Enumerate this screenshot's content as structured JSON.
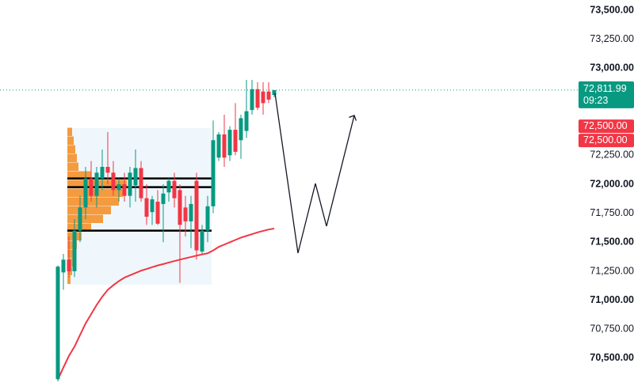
{
  "chart_data": {
    "type": "candlestick",
    "ylim": [
      70295,
      73589
    ],
    "yticks": [
      {
        "value": 70500,
        "label": "70,500.00"
      },
      {
        "value": 70750,
        "label": "70,750.00"
      },
      {
        "value": 71000,
        "label": "71,000.00"
      },
      {
        "value": 71250,
        "label": "71,250.00"
      },
      {
        "value": 71500,
        "label": "71,500.00"
      },
      {
        "value": 71750,
        "label": "71,750.00"
      },
      {
        "value": 72000,
        "label": "72,000.00"
      },
      {
        "value": 72250,
        "label": "72,250.00"
      },
      {
        "value": 73000,
        "label": "73,000.00"
      },
      {
        "value": 73250,
        "label": "73,250.00"
      },
      {
        "value": 73500,
        "label": "73,500.00"
      }
    ],
    "up_color": "#089981",
    "down_color": "#f23645",
    "candles": {
      "open": [
        70320,
        71240,
        71350,
        71250,
        71600,
        71800,
        72050,
        71900,
        72050,
        72150,
        72100,
        71950,
        72000,
        71900,
        71990,
        72140,
        71880,
        71760,
        71850,
        71830,
        71930,
        72030,
        71950,
        71800,
        71680,
        72030,
        71420,
        71600,
        71810,
        72230,
        72430,
        72250,
        72470,
        72380,
        72460,
        72640,
        72820,
        72800,
        72800,
        72770
      ],
      "high": [
        71300,
        71400,
        71550,
        71700,
        71900,
        72150,
        72200,
        72150,
        72300,
        72450,
        72200,
        72050,
        72100,
        72150,
        72300,
        72200,
        72000,
        71900,
        71950,
        72000,
        72050,
        72100,
        72000,
        71900,
        71900,
        72100,
        71650,
        71900,
        72550,
        72450,
        72600,
        72500,
        72700,
        72600,
        72900,
        72900,
        72880,
        72880,
        72880,
        72812
      ],
      "low": [
        70300,
        71090,
        71200,
        71200,
        71500,
        71700,
        71850,
        71800,
        71950,
        72000,
        71900,
        71850,
        71850,
        71800,
        71850,
        71850,
        71650,
        71650,
        71650,
        71500,
        71850,
        71800,
        71150,
        71550,
        71450,
        71350,
        71400,
        71500,
        71750,
        72200,
        72150,
        72200,
        72250,
        72220,
        72400,
        72600,
        72640,
        72600,
        72700,
        72750
      ],
      "close": [
        71290,
        71350,
        71250,
        71600,
        71800,
        72050,
        71900,
        72100,
        72150,
        72100,
        71950,
        72000,
        71900,
        72100,
        72140,
        71880,
        71720,
        71870,
        71660,
        71920,
        72030,
        71880,
        71650,
        71680,
        71830,
        71430,
        71600,
        71810,
        72380,
        72430,
        72230,
        72470,
        72280,
        72570,
        72630,
        72820,
        72660,
        72700,
        72730,
        72812
      ]
    },
    "moving_average": {
      "name": "MA",
      "color": "#f23645",
      "values": [
        70316,
        70420,
        70520,
        70600,
        70700,
        70800,
        70880,
        70960,
        71030,
        71090,
        71130,
        71165,
        71195,
        71215,
        71235,
        71255,
        71270,
        71285,
        71300,
        71312,
        71325,
        71338,
        71350,
        71362,
        71373,
        71385,
        71395,
        71405,
        71430,
        71460,
        71480,
        71500,
        71520,
        71540,
        71555,
        71570,
        71585,
        71598,
        71610,
        71618
      ]
    },
    "volume_profile": {
      "color": "#f57c00",
      "prices": [
        72450,
        72375,
        72300,
        72225,
        72150,
        72075,
        72000,
        71925,
        71850,
        71775,
        71700,
        71625,
        71550,
        71475,
        71400,
        71325,
        71250,
        71175
      ],
      "volumes": [
        6,
        8,
        10,
        12,
        14,
        30,
        75,
        70,
        65,
        55,
        45,
        30,
        18,
        12,
        10,
        8,
        6,
        4
      ]
    },
    "levels": [
      72050,
      71975,
      71600
    ],
    "current_price": {
      "value": 72811.99,
      "label": "72,811.99",
      "countdown": "09:23",
      "color": "#089981"
    },
    "markers": [
      {
        "value": 72500,
        "label": "72,500.00"
      },
      {
        "value": 72500,
        "label": "72,500.00"
      }
    ]
  }
}
